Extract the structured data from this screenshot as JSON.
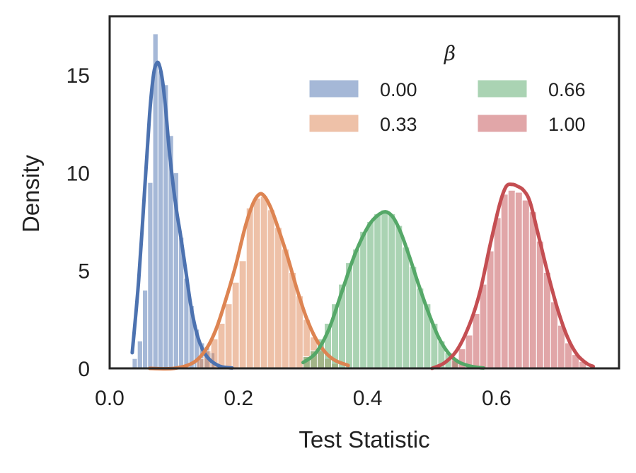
{
  "chart_data": {
    "type": "histogram_with_kde",
    "xlabel": "Test Statistic",
    "ylabel": "Density",
    "xlim": [
      0.0,
      0.79
    ],
    "ylim": [
      0,
      18
    ],
    "xticks": [
      0.0,
      0.2,
      0.4,
      0.6
    ],
    "xtick_labels": [
      "0.0",
      "0.2",
      "0.4",
      "0.6"
    ],
    "yticks": [
      0,
      5,
      10,
      15
    ],
    "ytick_labels": [
      "0",
      "5",
      "10",
      "15"
    ],
    "grid": false,
    "legend": {
      "title": "β",
      "placement": "top-right",
      "columns": 2
    },
    "series": [
      {
        "name": "0.00",
        "color": "#4c72b0",
        "bins": [
          {
            "x0": 0.035,
            "x1": 0.043,
            "y": 0.5
          },
          {
            "x0": 0.043,
            "x1": 0.051,
            "y": 1.4
          },
          {
            "x0": 0.051,
            "x1": 0.059,
            "y": 4.0
          },
          {
            "x0": 0.059,
            "x1": 0.067,
            "y": 9.5
          },
          {
            "x0": 0.067,
            "x1": 0.075,
            "y": 17.1
          },
          {
            "x0": 0.075,
            "x1": 0.083,
            "y": 15.2
          },
          {
            "x0": 0.083,
            "x1": 0.091,
            "y": 14.5
          },
          {
            "x0": 0.091,
            "x1": 0.099,
            "y": 11.9
          },
          {
            "x0": 0.099,
            "x1": 0.107,
            "y": 10.0
          },
          {
            "x0": 0.107,
            "x1": 0.115,
            "y": 6.7
          },
          {
            "x0": 0.115,
            "x1": 0.123,
            "y": 4.6
          },
          {
            "x0": 0.123,
            "x1": 0.131,
            "y": 3.2
          },
          {
            "x0": 0.131,
            "x1": 0.139,
            "y": 2.0
          },
          {
            "x0": 0.139,
            "x1": 0.147,
            "y": 1.3
          },
          {
            "x0": 0.147,
            "x1": 0.155,
            "y": 1.1
          },
          {
            "x0": 0.155,
            "x1": 0.163,
            "y": 0.8
          }
        ],
        "kde": {
          "x": [
            0.035,
            0.045,
            0.055,
            0.062,
            0.068,
            0.073,
            0.077,
            0.082,
            0.087,
            0.092,
            0.098,
            0.104,
            0.11,
            0.118,
            0.126,
            0.135,
            0.145,
            0.155,
            0.165,
            0.175,
            0.19
          ],
          "y": [
            0.8,
            4.5,
            9.5,
            13.0,
            15.0,
            15.6,
            15.5,
            14.7,
            13.2,
            11.3,
            9.5,
            8.0,
            6.8,
            5.0,
            3.2,
            1.8,
            0.9,
            0.45,
            0.2,
            0.07,
            0.02
          ]
        }
      },
      {
        "name": "0.33",
        "color": "#dd8452",
        "bins": [
          {
            "x0": 0.135,
            "x1": 0.146,
            "y": 0.5
          },
          {
            "x0": 0.146,
            "x1": 0.157,
            "y": 0.9
          },
          {
            "x0": 0.157,
            "x1": 0.168,
            "y": 1.5
          },
          {
            "x0": 0.168,
            "x1": 0.179,
            "y": 2.3
          },
          {
            "x0": 0.179,
            "x1": 0.19,
            "y": 3.3
          },
          {
            "x0": 0.19,
            "x1": 0.201,
            "y": 4.4
          },
          {
            "x0": 0.201,
            "x1": 0.212,
            "y": 5.5
          },
          {
            "x0": 0.212,
            "x1": 0.223,
            "y": 8.2
          },
          {
            "x0": 0.223,
            "x1": 0.234,
            "y": 8.7
          },
          {
            "x0": 0.234,
            "x1": 0.245,
            "y": 8.8
          },
          {
            "x0": 0.245,
            "x1": 0.256,
            "y": 8.1
          },
          {
            "x0": 0.256,
            "x1": 0.267,
            "y": 7.2
          },
          {
            "x0": 0.267,
            "x1": 0.278,
            "y": 6.1
          },
          {
            "x0": 0.278,
            "x1": 0.289,
            "y": 4.9
          },
          {
            "x0": 0.289,
            "x1": 0.3,
            "y": 3.7
          },
          {
            "x0": 0.3,
            "x1": 0.311,
            "y": 2.5
          },
          {
            "x0": 0.311,
            "x1": 0.322,
            "y": 1.6
          },
          {
            "x0": 0.322,
            "x1": 0.333,
            "y": 0.9
          },
          {
            "x0": 0.333,
            "x1": 0.344,
            "y": 0.5
          },
          {
            "x0": 0.344,
            "x1": 0.355,
            "y": 0.25
          }
        ],
        "kde": {
          "x": [
            0.062,
            0.1,
            0.13,
            0.15,
            0.165,
            0.18,
            0.195,
            0.21,
            0.222,
            0.232,
            0.24,
            0.25,
            0.26,
            0.275,
            0.29,
            0.305,
            0.32,
            0.335,
            0.35,
            0.37
          ],
          "y": [
            0.0,
            0.0,
            0.3,
            1.0,
            2.0,
            3.5,
            5.2,
            7.2,
            8.4,
            8.9,
            8.8,
            8.2,
            7.3,
            5.8,
            4.1,
            2.6,
            1.5,
            0.8,
            0.4,
            0.15
          ]
        }
      },
      {
        "name": "0.66",
        "color": "#55a868",
        "bins": [
          {
            "x0": 0.3,
            "x1": 0.311,
            "y": 0.6
          },
          {
            "x0": 0.311,
            "x1": 0.322,
            "y": 0.9
          },
          {
            "x0": 0.322,
            "x1": 0.333,
            "y": 1.5
          },
          {
            "x0": 0.333,
            "x1": 0.344,
            "y": 2.3
          },
          {
            "x0": 0.344,
            "x1": 0.355,
            "y": 3.3
          },
          {
            "x0": 0.355,
            "x1": 0.366,
            "y": 4.3
          },
          {
            "x0": 0.366,
            "x1": 0.377,
            "y": 5.4
          },
          {
            "x0": 0.377,
            "x1": 0.388,
            "y": 6.1
          },
          {
            "x0": 0.388,
            "x1": 0.399,
            "y": 7.0
          },
          {
            "x0": 0.399,
            "x1": 0.41,
            "y": 7.5
          },
          {
            "x0": 0.41,
            "x1": 0.421,
            "y": 7.9
          },
          {
            "x0": 0.421,
            "x1": 0.432,
            "y": 8.1
          },
          {
            "x0": 0.432,
            "x1": 0.443,
            "y": 7.9
          },
          {
            "x0": 0.443,
            "x1": 0.454,
            "y": 7.3
          },
          {
            "x0": 0.454,
            "x1": 0.465,
            "y": 6.2
          },
          {
            "x0": 0.465,
            "x1": 0.476,
            "y": 5.2
          },
          {
            "x0": 0.476,
            "x1": 0.487,
            "y": 4.1
          },
          {
            "x0": 0.487,
            "x1": 0.498,
            "y": 3.3
          },
          {
            "x0": 0.498,
            "x1": 0.509,
            "y": 2.3
          },
          {
            "x0": 0.509,
            "x1": 0.52,
            "y": 1.4
          },
          {
            "x0": 0.52,
            "x1": 0.531,
            "y": 0.8
          },
          {
            "x0": 0.531,
            "x1": 0.542,
            "y": 0.4
          }
        ],
        "kde": {
          "x": [
            0.3,
            0.32,
            0.34,
            0.36,
            0.38,
            0.4,
            0.415,
            0.428,
            0.44,
            0.452,
            0.465,
            0.48,
            0.495,
            0.51,
            0.525,
            0.54,
            0.555,
            0.57,
            0.58
          ],
          "y": [
            0.3,
            0.8,
            2.0,
            3.9,
            5.8,
            7.2,
            7.8,
            8.0,
            7.7,
            6.9,
            5.7,
            4.2,
            2.8,
            1.6,
            0.8,
            0.35,
            0.15,
            0.05,
            0.02
          ]
        }
      },
      {
        "name": "1.00",
        "color": "#c44e52",
        "bins": [
          {
            "x0": 0.53,
            "x1": 0.541,
            "y": 0.5
          },
          {
            "x0": 0.541,
            "x1": 0.552,
            "y": 1.0
          },
          {
            "x0": 0.552,
            "x1": 0.563,
            "y": 1.7
          },
          {
            "x0": 0.563,
            "x1": 0.574,
            "y": 2.8
          },
          {
            "x0": 0.574,
            "x1": 0.585,
            "y": 4.3
          },
          {
            "x0": 0.585,
            "x1": 0.596,
            "y": 6.0
          },
          {
            "x0": 0.596,
            "x1": 0.607,
            "y": 7.7
          },
          {
            "x0": 0.607,
            "x1": 0.618,
            "y": 8.9
          },
          {
            "x0": 0.618,
            "x1": 0.629,
            "y": 9.1
          },
          {
            "x0": 0.629,
            "x1": 0.64,
            "y": 9.0
          },
          {
            "x0": 0.64,
            "x1": 0.651,
            "y": 8.6
          },
          {
            "x0": 0.651,
            "x1": 0.662,
            "y": 8.0
          },
          {
            "x0": 0.662,
            "x1": 0.673,
            "y": 6.5
          },
          {
            "x0": 0.673,
            "x1": 0.684,
            "y": 4.9
          },
          {
            "x0": 0.684,
            "x1": 0.695,
            "y": 3.4
          },
          {
            "x0": 0.695,
            "x1": 0.706,
            "y": 2.2
          },
          {
            "x0": 0.706,
            "x1": 0.717,
            "y": 1.3
          },
          {
            "x0": 0.717,
            "x1": 0.728,
            "y": 0.7
          },
          {
            "x0": 0.728,
            "x1": 0.739,
            "y": 0.35
          }
        ],
        "kde": {
          "x": [
            0.5,
            0.52,
            0.54,
            0.56,
            0.575,
            0.59,
            0.605,
            0.615,
            0.625,
            0.633,
            0.642,
            0.652,
            0.665,
            0.68,
            0.695,
            0.71,
            0.725,
            0.74,
            0.75
          ],
          "y": [
            0.0,
            0.3,
            1.0,
            2.4,
            4.0,
            6.3,
            8.4,
            9.3,
            9.4,
            9.3,
            9.1,
            8.5,
            6.8,
            4.8,
            3.0,
            1.6,
            0.7,
            0.25,
            0.1
          ]
        }
      }
    ]
  }
}
